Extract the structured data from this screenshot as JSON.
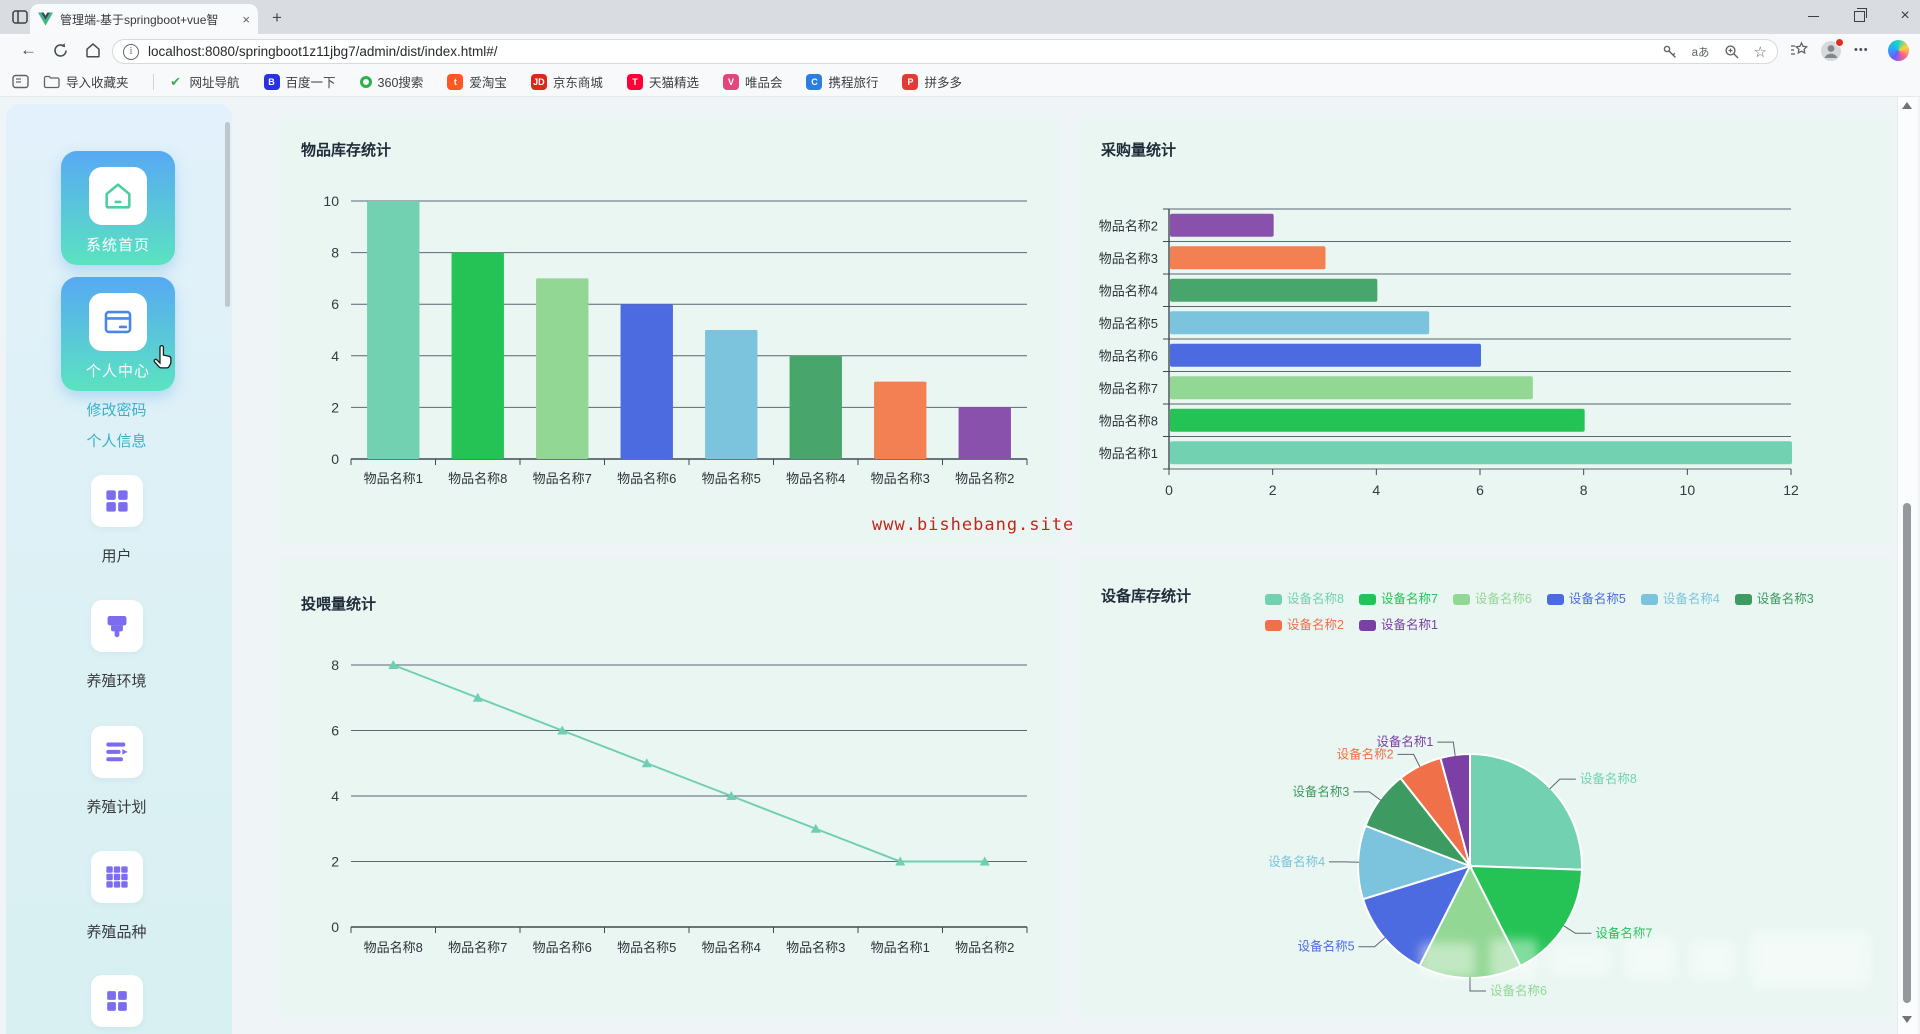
{
  "browser": {
    "tab": {
      "title": "管理端-基于springboot+vue智能",
      "close_glyph": "×",
      "new_tab_glyph": "+"
    },
    "url": "localhost:8080/springboot1z11jbg7/admin/dist/index.html#/",
    "translate_label": "aあ",
    "favorite_star_glyph": "☆",
    "more_glyph": "•••",
    "bookmarks": {
      "import_label": "导入收藏夹",
      "items": [
        {
          "label": "网址导航",
          "style": "plain",
          "glyph": "✔",
          "color": "#3fae4f"
        },
        {
          "label": "百度一下",
          "style": "solid",
          "glyph": "B",
          "bg": "#2932e1"
        },
        {
          "label": "360搜索",
          "style": "ring",
          "glyph": "",
          "color": "#2cb24d"
        },
        {
          "label": "爱淘宝",
          "style": "solid",
          "glyph": "t",
          "bg": "#ff5722"
        },
        {
          "label": "京东商城",
          "style": "solid",
          "glyph": "JD",
          "bg": "#e1251b"
        },
        {
          "label": "天猫精选",
          "style": "solid",
          "glyph": "T",
          "bg": "#ff0036"
        },
        {
          "label": "唯品会",
          "style": "solid",
          "glyph": "V",
          "bg": "#e5457b"
        },
        {
          "label": "携程旅行",
          "style": "solid",
          "glyph": "C",
          "bg": "#2b7de0"
        },
        {
          "label": "拼多多",
          "style": "solid",
          "glyph": "P",
          "bg": "#e53935"
        }
      ]
    }
  },
  "sidebar": {
    "cards": [
      {
        "label": "系统首页",
        "icon": "home-icon"
      },
      {
        "label": "个人中心",
        "icon": "profile-card-icon"
      }
    ],
    "links": [
      {
        "label": "修改密码"
      },
      {
        "label": "个人信息"
      }
    ],
    "menu": [
      {
        "label": "用户",
        "icon": "grid-2x2"
      },
      {
        "label": "养殖环境",
        "icon": "brush"
      },
      {
        "label": "养殖计划",
        "icon": "plan-list"
      },
      {
        "label": "养殖品种",
        "icon": "grid-3x3"
      }
    ]
  },
  "watermark": {
    "text": "www.bishebang.site",
    "color": "#c2251d"
  },
  "charts": [
    {
      "type": "bar",
      "title": "物品库存统计",
      "categories": [
        "物品名称1",
        "物品名称8",
        "物品名称7",
        "物品名称6",
        "物品名称5",
        "物品名称4",
        "物品名称3",
        "物品名称2"
      ],
      "values": [
        10,
        8,
        7,
        6,
        5,
        4,
        3,
        2
      ],
      "colors": [
        "#72d1b1",
        "#25c356",
        "#93d795",
        "#4d6be0",
        "#7cc3dd",
        "#48a56b",
        "#f28052",
        "#8951ac"
      ],
      "ylim": [
        0,
        10
      ],
      "yticks": [
        0,
        2,
        4,
        6,
        8,
        10
      ]
    },
    {
      "type": "barh",
      "title": "采购量统计",
      "categories": [
        "物品名称2",
        "物品名称3",
        "物品名称4",
        "物品名称5",
        "物品名称6",
        "物品名称7",
        "物品名称8",
        "物品名称1"
      ],
      "values": [
        2,
        3,
        4,
        5,
        6,
        7,
        8,
        12
      ],
      "colors": [
        "#8951ac",
        "#f28052",
        "#48a56b",
        "#7cc3dd",
        "#4d6be0",
        "#93d795",
        "#25c356",
        "#72d1b1"
      ],
      "xlim": [
        0,
        12
      ],
      "xticks": [
        0,
        2,
        4,
        6,
        8,
        10,
        12
      ]
    },
    {
      "type": "line",
      "title": "投喂量统计",
      "categories": [
        "物品名称8",
        "物品名称7",
        "物品名称6",
        "物品名称5",
        "物品名称4",
        "物品名称3",
        "物品名称1",
        "物品名称2"
      ],
      "values": [
        8,
        7,
        6,
        5,
        4,
        3,
        2,
        2
      ],
      "line_color": "#70cfb2",
      "ylim": [
        0,
        8
      ],
      "yticks": [
        0,
        2,
        4,
        6,
        8
      ]
    },
    {
      "type": "pie",
      "title": "设备库存统计",
      "slices": [
        {
          "name": "设备名称8",
          "value": 12,
          "color": "#72d1b1"
        },
        {
          "name": "设备名称7",
          "value": 8,
          "color": "#25c356"
        },
        {
          "name": "设备名称6",
          "value": 7,
          "color": "#93d795"
        },
        {
          "name": "设备名称5",
          "value": 6,
          "color": "#4d6be0"
        },
        {
          "name": "设备名称4",
          "value": 5,
          "color": "#7cc3dd"
        },
        {
          "name": "设备名称3",
          "value": 4,
          "color": "#3d9a60"
        },
        {
          "name": "设备名称2",
          "value": 3,
          "color": "#f0704a"
        },
        {
          "name": "设备名称1",
          "value": 2,
          "color": "#7b3fa5"
        }
      ],
      "legend_rows": [
        [
          "设备名称8",
          "设备名称7",
          "设备名称6",
          "设备名称5",
          "设备名称4",
          "设备名称3"
        ],
        [
          "设备名称2",
          "设备名称1"
        ]
      ]
    }
  ]
}
